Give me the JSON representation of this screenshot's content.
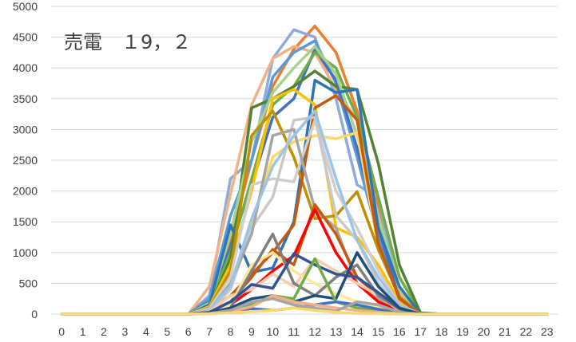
{
  "chart_data": {
    "type": "line",
    "title": "売電　１9，２",
    "xlabel": "",
    "ylabel": "",
    "x": [
      0,
      1,
      2,
      3,
      4,
      5,
      6,
      7,
      8,
      9,
      10,
      11,
      12,
      13,
      14,
      15,
      16,
      17,
      18,
      19,
      20,
      21,
      22,
      23
    ],
    "ylim": [
      0,
      5000
    ],
    "yticks": [
      0,
      500,
      1000,
      1500,
      2000,
      2500,
      3000,
      3500,
      4000,
      4500,
      5000
    ],
    "grid": "horizontal",
    "legend": "none",
    "series": [
      {
        "color": "#ed7d31",
        "values": [
          0,
          0,
          0,
          0,
          0,
          0,
          0,
          200,
          1200,
          2500,
          3700,
          4300,
          4680,
          4250,
          3300,
          1700,
          400,
          10,
          0,
          0,
          0,
          0,
          0,
          0
        ]
      },
      {
        "color": "#8faadc",
        "values": [
          0,
          0,
          0,
          0,
          0,
          0,
          0,
          300,
          2200,
          2500,
          4150,
          4620,
          4500,
          3500,
          2100,
          1900,
          300,
          0,
          0,
          0,
          0,
          0,
          0,
          0
        ]
      },
      {
        "color": "#f4b183",
        "values": [
          0,
          0,
          0,
          0,
          0,
          0,
          0,
          450,
          1950,
          3400,
          4150,
          4350,
          4250,
          3650,
          3150,
          1500,
          350,
          0,
          0,
          0,
          0,
          0,
          0,
          0
        ]
      },
      {
        "color": "#5b9bd5",
        "values": [
          0,
          0,
          0,
          0,
          0,
          0,
          0,
          250,
          1600,
          2500,
          3850,
          4250,
          4440,
          3750,
          2550,
          1250,
          250,
          0,
          0,
          0,
          0,
          0,
          0,
          0
        ]
      },
      {
        "color": "#4472c4",
        "values": [
          0,
          0,
          0,
          0,
          0,
          0,
          0,
          200,
          1100,
          2100,
          3200,
          3500,
          4300,
          3800,
          2700,
          1400,
          280,
          0,
          0,
          0,
          0,
          0,
          0,
          0
        ]
      },
      {
        "color": "#70ad47",
        "values": [
          0,
          0,
          0,
          0,
          0,
          0,
          0,
          150,
          1000,
          2200,
          3400,
          3700,
          4250,
          4000,
          3200,
          1900,
          600,
          20,
          0,
          0,
          0,
          0,
          0,
          0
        ]
      },
      {
        "color": "#548235",
        "values": [
          0,
          0,
          0,
          0,
          0,
          0,
          0,
          100,
          900,
          3350,
          3500,
          3700,
          3950,
          3700,
          3650,
          2450,
          800,
          20,
          0,
          0,
          0,
          0,
          0,
          0
        ]
      },
      {
        "color": "#a9d18e",
        "values": [
          0,
          0,
          0,
          0,
          0,
          0,
          0,
          180,
          1300,
          2800,
          3600,
          4000,
          4350,
          3900,
          2900,
          1600,
          400,
          0,
          0,
          0,
          0,
          0,
          0,
          0
        ]
      },
      {
        "color": "#2e75b6",
        "values": [
          0,
          0,
          0,
          0,
          0,
          0,
          0,
          150,
          1450,
          680,
          750,
          1500,
          3800,
          3600,
          3650,
          1400,
          450,
          0,
          0,
          0,
          0,
          0,
          0,
          0
        ]
      },
      {
        "color": "#ffc000",
        "values": [
          0,
          0,
          0,
          0,
          0,
          0,
          0,
          120,
          800,
          2000,
          3500,
          3650,
          3400,
          1400,
          1250,
          800,
          200,
          0,
          0,
          0,
          0,
          0,
          0,
          0
        ]
      },
      {
        "color": "#ffd966",
        "values": [
          0,
          0,
          0,
          0,
          0,
          0,
          0,
          80,
          500,
          1500,
          2550,
          2800,
          2900,
          2850,
          2950,
          1100,
          250,
          0,
          0,
          0,
          0,
          0,
          0,
          0
        ]
      },
      {
        "color": "#bf9000",
        "values": [
          0,
          0,
          0,
          0,
          0,
          0,
          0,
          100,
          700,
          2900,
          3300,
          2550,
          1550,
          1600,
          1990,
          1050,
          280,
          0,
          0,
          0,
          0,
          0,
          0,
          0
        ]
      },
      {
        "color": "#c55a11",
        "values": [
          0,
          0,
          0,
          0,
          0,
          0,
          0,
          60,
          300,
          650,
          1000,
          1450,
          3350,
          3550,
          3150,
          1150,
          250,
          0,
          0,
          0,
          0,
          0,
          0,
          0
        ]
      },
      {
        "color": "#d0cece",
        "values": [
          0,
          0,
          0,
          0,
          0,
          0,
          0,
          90,
          600,
          2100,
          2200,
          2150,
          3150,
          2000,
          1400,
          700,
          150,
          0,
          0,
          0,
          0,
          0,
          0,
          0
        ]
      },
      {
        "color": "#c9c9c9",
        "values": [
          0,
          0,
          0,
          0,
          0,
          0,
          0,
          50,
          400,
          1400,
          1900,
          3150,
          3200,
          1600,
          1200,
          500,
          120,
          0,
          0,
          0,
          0,
          0,
          0,
          0
        ]
      },
      {
        "color": "#a5a5a5",
        "values": [
          0,
          0,
          0,
          0,
          0,
          0,
          0,
          60,
          500,
          1300,
          2900,
          3000,
          1700,
          1400,
          500,
          250,
          80,
          0,
          0,
          0,
          0,
          0,
          0,
          0
        ]
      },
      {
        "color": "#9dc3e6",
        "values": [
          0,
          0,
          0,
          0,
          0,
          0,
          0,
          70,
          450,
          1550,
          2400,
          2900,
          3300,
          2200,
          1200,
          600,
          150,
          0,
          0,
          0,
          0,
          0,
          0,
          0
        ]
      },
      {
        "color": "#c55a11",
        "values": [
          0,
          0,
          0,
          0,
          0,
          0,
          0,
          40,
          200,
          600,
          1050,
          800,
          1780,
          1300,
          600,
          300,
          80,
          0,
          0,
          0,
          0,
          0,
          0,
          0
        ]
      },
      {
        "color": "#ff0000",
        "values": [
          0,
          0,
          0,
          0,
          0,
          0,
          0,
          30,
          150,
          400,
          700,
          950,
          1700,
          1000,
          500,
          200,
          50,
          0,
          0,
          0,
          0,
          0,
          0,
          0
        ]
      },
      {
        "color": "#f8cbad",
        "values": [
          0,
          0,
          0,
          0,
          0,
          0,
          0,
          40,
          300,
          400,
          650,
          450,
          900,
          700,
          500,
          300,
          60,
          0,
          0,
          0,
          0,
          0,
          0,
          0
        ]
      },
      {
        "color": "#ffe699",
        "values": [
          0,
          0,
          0,
          0,
          0,
          0,
          0,
          20,
          150,
          800,
          1000,
          700,
          500,
          330,
          200,
          120,
          30,
          0,
          0,
          0,
          0,
          0,
          0,
          0
        ]
      },
      {
        "color": "#7f7f7f",
        "values": [
          0,
          0,
          0,
          0,
          0,
          0,
          0,
          20,
          100,
          700,
          1300,
          500,
          300,
          600,
          800,
          300,
          80,
          0,
          0,
          0,
          0,
          0,
          0,
          0
        ]
      },
      {
        "color": "#2f5597",
        "values": [
          0,
          0,
          0,
          0,
          0,
          0,
          0,
          30,
          200,
          480,
          420,
          980,
          800,
          650,
          600,
          350,
          100,
          0,
          0,
          0,
          0,
          0,
          0,
          0
        ]
      },
      {
        "color": "#1f4e79",
        "values": [
          0,
          0,
          0,
          0,
          0,
          0,
          0,
          20,
          100,
          250,
          300,
          200,
          300,
          250,
          1000,
          450,
          100,
          0,
          0,
          0,
          0,
          0,
          0,
          0
        ]
      },
      {
        "color": "#70ad47",
        "values": [
          0,
          0,
          0,
          0,
          0,
          0,
          0,
          10,
          60,
          150,
          300,
          250,
          900,
          200,
          100,
          50,
          10,
          0,
          0,
          0,
          0,
          0,
          0,
          0
        ]
      },
      {
        "color": "#4472c4",
        "values": [
          0,
          0,
          0,
          0,
          0,
          0,
          0,
          10,
          50,
          90,
          60,
          100,
          150,
          200,
          150,
          80,
          20,
          0,
          0,
          0,
          0,
          0,
          0,
          0
        ]
      },
      {
        "color": "#f4b183",
        "values": [
          0,
          0,
          0,
          0,
          0,
          0,
          0,
          5,
          40,
          120,
          300,
          200,
          150,
          100,
          60,
          30,
          10,
          0,
          0,
          0,
          0,
          0,
          0,
          0
        ]
      },
      {
        "color": "#a5a5a5",
        "values": [
          0,
          0,
          0,
          0,
          0,
          0,
          0,
          10,
          60,
          200,
          250,
          150,
          100,
          50,
          200,
          150,
          30,
          0,
          0,
          0,
          0,
          0,
          0,
          0
        ]
      },
      {
        "color": "#ffd966",
        "values": [
          0,
          0,
          0,
          0,
          0,
          0,
          0,
          5,
          20,
          40,
          60,
          100,
          60,
          30,
          10,
          5,
          0,
          0,
          0,
          0,
          0,
          0,
          0,
          0
        ]
      }
    ]
  }
}
